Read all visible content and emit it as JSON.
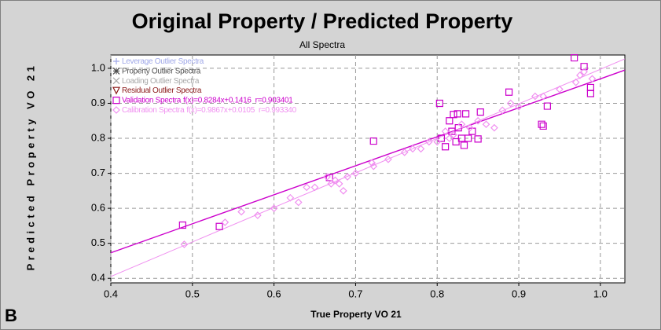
{
  "chart_data": {
    "type": "scatter",
    "title": "Original Property / Predicted Property",
    "subtitle": "All Spectra",
    "xlabel": "True Property VO 21",
    "ylabel": "Predicted Property VO 21",
    "panel_label": "B",
    "xlim": [
      0.4,
      1.03
    ],
    "ylim": [
      0.387,
      1.038
    ],
    "xticks": [
      0.4,
      0.5,
      0.6,
      0.7,
      0.8,
      0.9,
      {
        "value": 1,
        "label": "1.0"
      }
    ],
    "yticks": [
      0.4,
      0.5,
      0.6,
      0.7,
      0.8,
      0.9,
      {
        "value": 1,
        "label": "1.0"
      }
    ],
    "grid": true,
    "legend": "upper-left",
    "series": [
      {
        "name": "Leverage Outlier Spectra",
        "color": "#a0a8e8",
        "marker": "plus",
        "x": [],
        "y": []
      },
      {
        "name": "Property Outlier Spectra",
        "color": "#505050",
        "marker": "star",
        "x": [],
        "y": []
      },
      {
        "name": "Loading Outlier Spectra",
        "color": "#a8a8a8",
        "marker": "x",
        "x": [],
        "y": []
      },
      {
        "name": "Residual Outlier Spectra",
        "color": "#8b1a1a",
        "marker": "triangle",
        "x": [],
        "y": []
      },
      {
        "name": "Validation Spectra",
        "color": "#cc00cc",
        "marker": "square",
        "fit_label": "f(x)=0.8284x+0.1416",
        "r_label": "r=0.903401",
        "slope": 0.8284,
        "intercept": 0.1416,
        "x": [
          0.488,
          0.533,
          0.668,
          0.722,
          0.803,
          0.805,
          0.81,
          0.815,
          0.818,
          0.82,
          0.823,
          0.825,
          0.826,
          0.83,
          0.833,
          0.835,
          0.838,
          0.843,
          0.85,
          0.853,
          0.888,
          0.928,
          0.93,
          0.935,
          0.968,
          0.98,
          0.988,
          0.988
        ],
        "y": [
          0.552,
          0.548,
          0.688,
          0.792,
          0.9,
          0.8,
          0.776,
          0.85,
          0.82,
          0.868,
          0.79,
          0.87,
          0.83,
          0.8,
          0.78,
          0.87,
          0.8,
          0.82,
          0.798,
          0.875,
          0.932,
          0.84,
          0.835,
          0.892,
          1.03,
          1.005,
          0.945,
          0.928
        ]
      },
      {
        "name": "Calibration Spectra",
        "color": "#f090f0",
        "marker": "diamond",
        "fit_label": "f(x)=0.9867x+0.0105",
        "r_label": "r=0.993340",
        "slope": 0.9867,
        "intercept": 0.0105,
        "x": [
          0.49,
          0.54,
          0.56,
          0.58,
          0.6,
          0.62,
          0.63,
          0.64,
          0.65,
          0.665,
          0.67,
          0.675,
          0.68,
          0.685,
          0.69,
          0.7,
          0.72,
          0.722,
          0.74,
          0.76,
          0.77,
          0.78,
          0.79,
          0.8,
          0.81,
          0.815,
          0.82,
          0.83,
          0.84,
          0.85,
          0.86,
          0.87,
          0.88,
          0.89,
          0.9,
          0.92,
          0.93,
          0.95,
          0.97,
          0.975,
          0.98,
          0.99
        ],
        "y": [
          0.497,
          0.56,
          0.59,
          0.58,
          0.6,
          0.63,
          0.617,
          0.66,
          0.66,
          0.69,
          0.67,
          0.68,
          0.67,
          0.65,
          0.69,
          0.7,
          0.73,
          0.72,
          0.74,
          0.76,
          0.77,
          0.77,
          0.79,
          0.79,
          0.82,
          0.8,
          0.81,
          0.84,
          0.83,
          0.85,
          0.84,
          0.83,
          0.88,
          0.9,
          0.89,
          0.92,
          0.92,
          0.94,
          0.96,
          0.98,
          0.99,
          0.97
        ]
      }
    ]
  }
}
